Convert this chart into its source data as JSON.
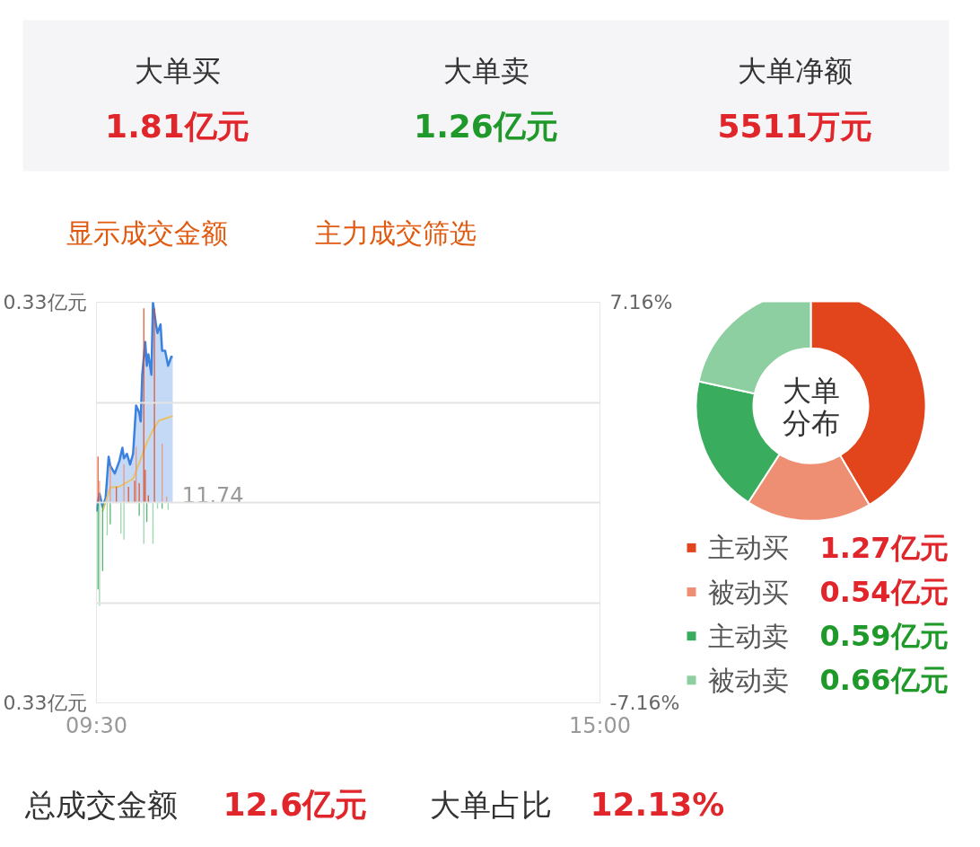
{
  "chart_data": [
    {
      "type": "other",
      "annotations": [
        "大单买",
        "1.81亿元",
        "大单卖",
        "1.26亿元",
        "大单净额",
        "5511万元",
        "显示成交金额",
        "主力成交筛选",
        "总成交金额",
        "12.6亿元",
        "大单占比",
        "12.13%"
      ]
    },
    {
      "type": "line",
      "annotations": [
        "11.74"
      ],
      "xlim": [
        9.5,
        15
      ],
      "xticks": [
        {
          "value": 9.5,
          "label": "09:30"
        },
        {
          "value": 15,
          "label": "15:00"
        }
      ],
      "ylim": [
        -7.16,
        7.16
      ],
      "yticks": [
        {
          "value": 7.16,
          "label": "7.16%"
        },
        {
          "value": 3.58,
          "label": null
        },
        {
          "value": 0,
          "label": null
        },
        {
          "value": -3.58,
          "label": null
        },
        {
          "value": -7.16,
          "label": "-7.16%"
        }
      ],
      "y2lim": [
        -0.33,
        0.33
      ],
      "y2ticks": [
        {
          "value": 0.33,
          "label": "0.33亿元"
        },
        {
          "value": -0.33,
          "label": "0.33亿元"
        }
      ],
      "grid": "y",
      "marker": "none",
      "line_style": "solid",
      "series": [
        {
          "type": "area",
          "color": "#3b82e0",
          "x": [
            9.5,
            9.533,
            9.567,
            9.6,
            9.633,
            9.65,
            9.7,
            9.75,
            9.783,
            9.8,
            9.833,
            9.867,
            9.9,
            9.933,
            9.967,
            9.983,
            10.0,
            10.033,
            10.05,
            10.067,
            10.1,
            10.117,
            10.15,
            10.167,
            10.2,
            10.217,
            10.25,
            10.283,
            10.317,
            10.333
          ],
          "values": [
            -0.32,
            0.32,
            -0.16,
            0.16,
            1.64,
            1.32,
            1.04,
            1.48,
            1.96,
            1.58,
            1.74,
            1.36,
            1.74,
            3.47,
            3.22,
            2.9,
            4.57,
            5.74,
            4.89,
            5.3,
            4.57,
            7.16,
            6.37,
            6.06,
            6.37,
            5.43,
            5.43,
            4.89,
            5.21,
            5.21
          ]
        },
        {
          "type": "line",
          "color": "#e6c36a",
          "x": [
            9.567,
            9.65,
            9.75,
            9.9,
            9.967,
            10.05,
            10.117,
            10.183,
            10.333
          ],
          "values": [
            -0.32,
            0.54,
            0.57,
            0.85,
            1.42,
            2.14,
            2.59,
            2.93,
            3.09
          ]
        },
        {
          "type": "bar",
          "axis": "y2",
          "x": [
            9.517,
            9.533,
            9.65,
            9.717,
            9.8,
            9.85,
            9.917,
            9.933,
            9.967,
            10.017,
            10.033,
            10.067,
            10.133,
            10.217,
            10.267
          ],
          "values": [
            0.076,
            0.036,
            0.061,
            0.026,
            0.063,
            0.026,
            0.036,
            0.092,
            0.032,
            0.32,
            0.054,
            0.012,
            0.32,
            0.097,
            0.01
          ],
          "colors": [
            "#e2451b",
            "#ee8f74",
            "#ee8f74",
            "#e2451b",
            "#ee8f74",
            "#e2451b",
            "#e2451b",
            "#ee8f74",
            "#e2451b",
            "#e2451b",
            "#e2451b",
            "#e2451b",
            "#e2451b",
            "#ee8f74",
            "#ee8f74"
          ]
        },
        {
          "type": "bar",
          "axis": "y2",
          "x": [
            9.517,
            9.533,
            9.567,
            9.617,
            9.65,
            9.767,
            9.8,
            9.967,
            10.017,
            10.05,
            10.117,
            10.167,
            10.217,
            10.283
          ],
          "values": [
            -0.143,
            -0.17,
            -0.113,
            -0.054,
            -0.036,
            -0.051,
            -0.061,
            -0.022,
            -0.068,
            -0.032,
            -0.068,
            -0.01,
            -0.01,
            -0.012
          ],
          "colors": [
            "#3aac5d",
            "#8dcfa0",
            "#3aac5d",
            "#8dcfa0",
            "#3aac5d",
            "#8dcfa0",
            "#8dcfa0",
            "#3aac5d",
            "#8dcfa0",
            "#3aac5d",
            "#8dcfa0",
            "#8dcfa0",
            "#3aac5d",
            "#8dcfa0"
          ]
        }
      ]
    },
    {
      "type": "donut",
      "title": "大单分布",
      "categories": [
        "主动买",
        "被动买",
        "主动卖",
        "被动卖"
      ],
      "values": [
        1.27,
        0.54,
        0.59,
        0.66
      ],
      "colors": [
        "#e2451b",
        "#ee8f74",
        "#3aac5d",
        "#8dcfa0"
      ],
      "value_labels": [
        "1.27亿元",
        "0.54亿元",
        "0.59亿元",
        "0.66亿元"
      ],
      "legend": "bottom"
    }
  ]
}
